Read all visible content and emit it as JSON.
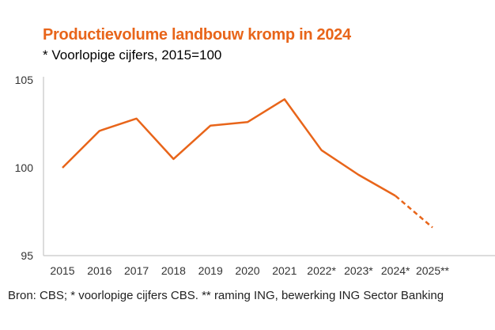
{
  "chart_data": {
    "type": "line",
    "title": "Productievolume landbouw kromp in 2024",
    "subtitle": "* Voorlopige cijfers, 2015=100",
    "categories": [
      "2015",
      "2016",
      "2017",
      "2018",
      "2019",
      "2020",
      "2021",
      "2022*",
      "2023*",
      "2024*",
      "2025**"
    ],
    "series": [
      {
        "name": "Productievolume landbouw",
        "values": [
          100.0,
          102.1,
          102.8,
          100.5,
          102.4,
          102.6,
          103.9,
          101.0,
          99.6,
          98.4,
          96.6
        ],
        "dashed_from_index": 9
      }
    ],
    "yticks": [
      "95",
      "100",
      "105"
    ],
    "ylim": [
      95,
      105
    ],
    "xlabel": "",
    "ylabel": "",
    "grid": false,
    "color": "#e8651a",
    "source": "Bron: CBS; * voorlopige cijfers CBS. ** raming ING, bewerking ING Sector Banking"
  }
}
